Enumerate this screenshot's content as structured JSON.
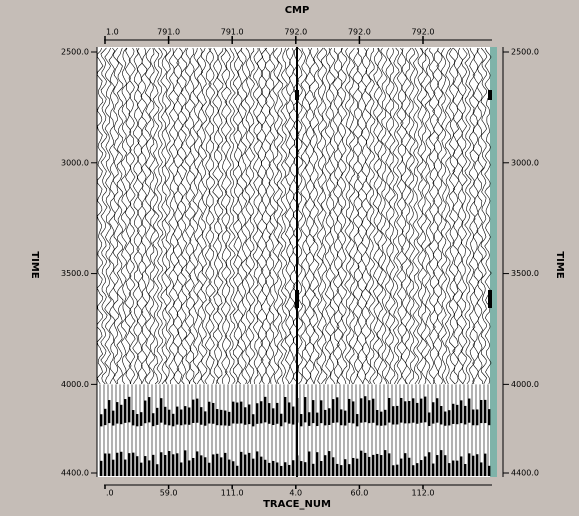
{
  "chart_data": {
    "type": "seismic",
    "top_axis": {
      "title": "CMP",
      "labels": [
        "1.0",
        "791.0",
        "791.0",
        "792.0",
        "792.0",
        "792.0"
      ]
    },
    "bottom_axis": {
      "title": "TRACE_NUM",
      "labels": [
        ".0",
        "59.0",
        "111.0",
        "4.0",
        "60.0",
        "112.0"
      ]
    },
    "y_label": "TIME",
    "ylim": [
      2500,
      4400
    ],
    "yticks": [
      {
        "value": 2500,
        "label": "2500.0"
      },
      {
        "value": 3000,
        "label": "3000.0"
      },
      {
        "value": 3500,
        "label": "3500.0"
      },
      {
        "value": 4000,
        "label": "4000.0"
      },
      {
        "value": 4400,
        "label": "4400.0"
      }
    ]
  }
}
